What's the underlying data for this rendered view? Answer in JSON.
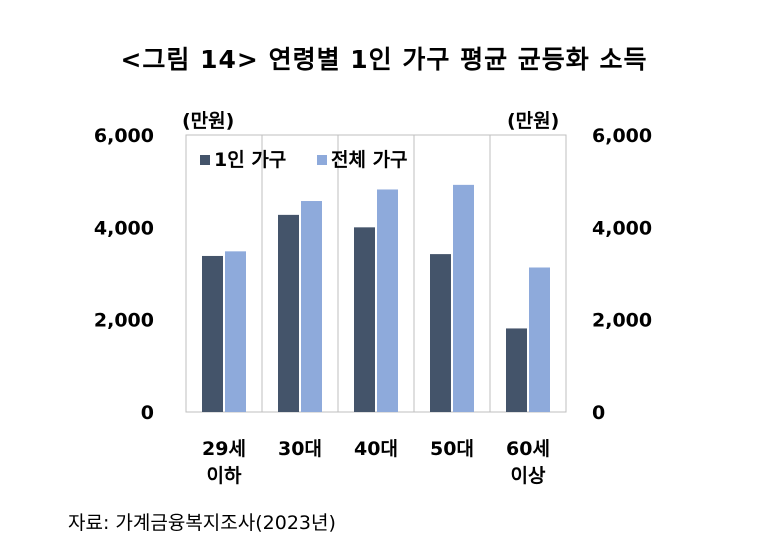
{
  "title": "<그림 14> 연령별 1인 가구 평균 균등화 소득",
  "unit_left": "(만원)",
  "unit_right": "(만원)",
  "source": "자료: 가계금융복지조사(2023년)",
  "colors": {
    "series1": "#44546a",
    "series2": "#8eaadb"
  },
  "chart_data": {
    "type": "bar",
    "categories": [
      [
        "29세",
        "이하"
      ],
      [
        "30대"
      ],
      [
        "40대"
      ],
      [
        "50대"
      ],
      [
        "60세",
        "이상"
      ]
    ],
    "series": [
      {
        "name": "1인 가구",
        "values": [
          3380,
          4270,
          4000,
          3420,
          1810
        ]
      },
      {
        "name": "전체 가구",
        "values": [
          3480,
          4570,
          4820,
          4920,
          3130
        ]
      }
    ],
    "ylim": [
      0,
      6000
    ],
    "yticks": [
      "0",
      "2,000",
      "4,000",
      "6,000"
    ],
    "ytick_values": [
      0,
      2000,
      4000,
      6000
    ],
    "ylabel_left": "(만원)",
    "ylabel_right": "(만원)",
    "grid": "vertical separators between categories",
    "legend_position": "top-left"
  }
}
